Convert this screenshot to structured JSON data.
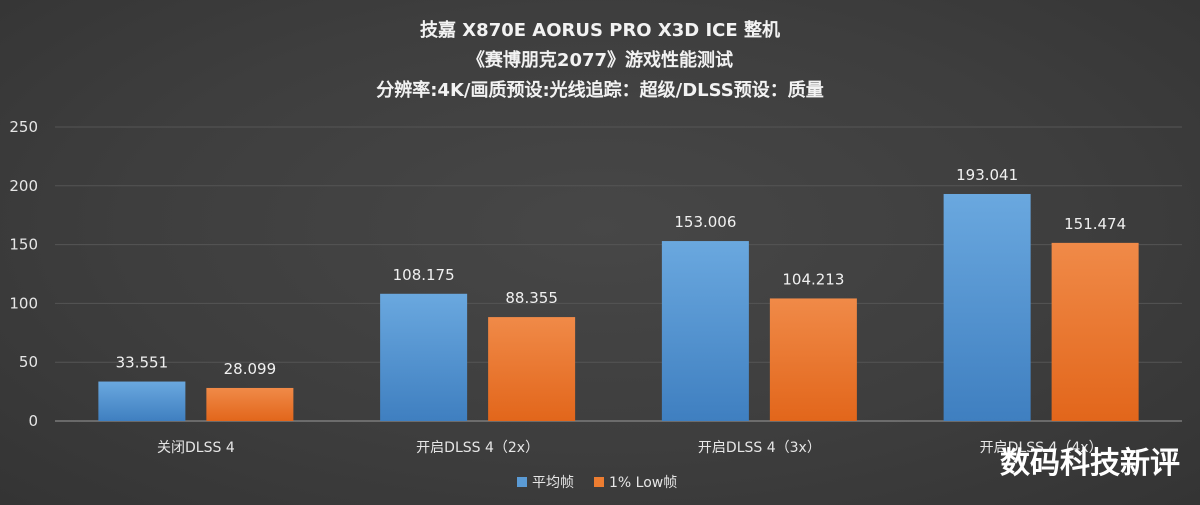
{
  "chart_data": {
    "type": "bar",
    "title_lines": [
      "技嘉 X870E AORUS PRO X3D ICE 整机",
      "《赛博朋克2077》游戏性能测试",
      "分辨率:4K/画质预设:光线追踪：超级/DLSS预设：质量"
    ],
    "categories": [
      "关闭DLSS 4",
      "开启DLSS 4（2x）",
      "开启DLSS 4（3x）",
      "开启DLSS 4（4x）"
    ],
    "series": [
      {
        "name": "平均帧",
        "values": [
          33.551,
          108.175,
          153.006,
          193.041
        ],
        "color": "#5b9bd5"
      },
      {
        "name": "1% Low帧",
        "values": [
          28.099,
          88.355,
          104.213,
          151.474
        ],
        "color": "#ed7d31"
      }
    ],
    "data_labels": [
      [
        "33.551",
        "108.175",
        "153.006",
        "193.041"
      ],
      [
        "28.099",
        "88.355",
        "104.213",
        "151.474"
      ]
    ],
    "ylim": [
      0,
      250
    ],
    "yticks": [
      0,
      50,
      100,
      150,
      200,
      250
    ],
    "xlabel": "",
    "ylabel": "",
    "grid": true,
    "legend_position": "bottom"
  },
  "watermark": "数码科技新评"
}
